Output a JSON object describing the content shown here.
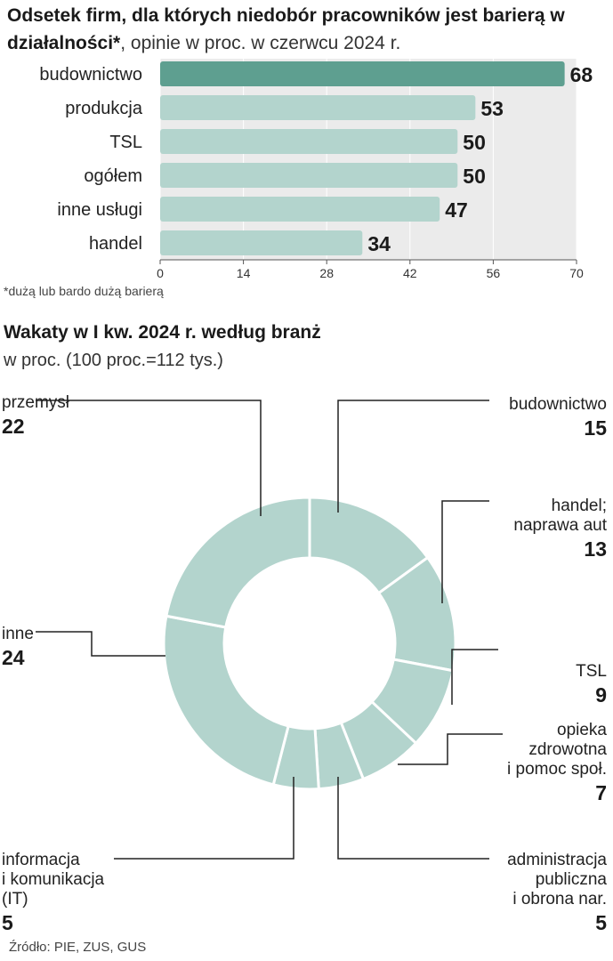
{
  "chart_data": [
    {
      "type": "bar",
      "orientation": "horizontal",
      "title": "Odsetek firm, dla których niedobór pracowników jest barierą w działalności*",
      "subtitle": ", opinie w proc. w czerwcu 2024 r.",
      "categories": [
        "budownictwo",
        "produkcja",
        "TSL",
        "ogółem",
        "inne usługi",
        "handel"
      ],
      "values": [
        68,
        53,
        50,
        50,
        47,
        34
      ],
      "xlim": [
        0,
        70
      ],
      "xticks": [
        "0",
        "14",
        "28",
        "42",
        "56",
        "70"
      ],
      "highlight": "budownictwo",
      "note": "*dużą lub bardo dużą barierą",
      "colors": {
        "highlight": "#5e9f90",
        "bar": "#b3d4cd",
        "plot_bg": "#ebebeb"
      }
    },
    {
      "type": "pie",
      "variant": "donut",
      "title": "Wakaty w I kw. 2024 r. według branż",
      "subtitle": "w proc. (100 proc.=112 tys.)",
      "slices": [
        {
          "label": [
            "budownictwo"
          ],
          "value": 15
        },
        {
          "label": [
            "handel;",
            "naprawa aut"
          ],
          "value": 13
        },
        {
          "label": [
            "TSL"
          ],
          "value": 9
        },
        {
          "label": [
            "opieka",
            "zdrowotna",
            "i pomoc społ."
          ],
          "value": 7
        },
        {
          "label": [
            "administracja",
            "publiczna",
            "i obrona nar."
          ],
          "value": 5
        },
        {
          "label": [
            "informacja",
            "i komunikacja",
            "(IT)"
          ],
          "value": 5
        },
        {
          "label": [
            "inne"
          ],
          "value": 24
        },
        {
          "label": [
            "przemysł"
          ],
          "value": 22
        }
      ],
      "colors": {
        "slice": "#b3d4cd",
        "separator": "#ffffff",
        "leader": "#222222"
      }
    }
  ],
  "source": "Źródło: PIE, ZUS, GUS"
}
